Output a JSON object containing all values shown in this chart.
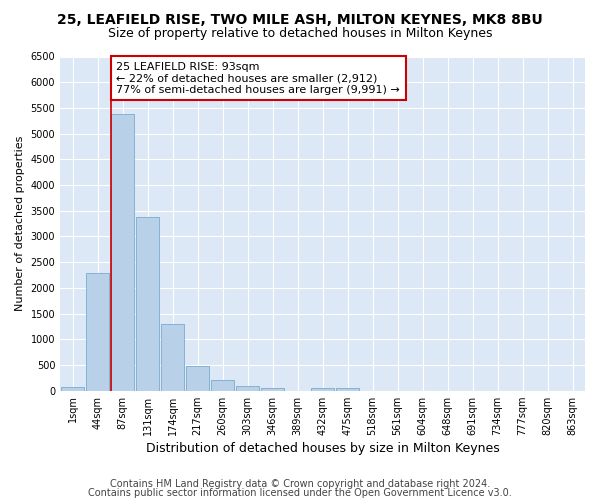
{
  "title1": "25, LEAFIELD RISE, TWO MILE ASH, MILTON KEYNES, MK8 8BU",
  "title2": "Size of property relative to detached houses in Milton Keynes",
  "xlabel": "Distribution of detached houses by size in Milton Keynes",
  "ylabel": "Number of detached properties",
  "footer1": "Contains HM Land Registry data © Crown copyright and database right 2024.",
  "footer2": "Contains public sector information licensed under the Open Government Licence v3.0.",
  "categories": [
    "1sqm",
    "44sqm",
    "87sqm",
    "131sqm",
    "174sqm",
    "217sqm",
    "260sqm",
    "303sqm",
    "346sqm",
    "389sqm",
    "432sqm",
    "475sqm",
    "518sqm",
    "561sqm",
    "604sqm",
    "648sqm",
    "691sqm",
    "734sqm",
    "777sqm",
    "820sqm",
    "863sqm"
  ],
  "values": [
    75,
    2280,
    5380,
    3380,
    1290,
    475,
    215,
    90,
    50,
    0,
    60,
    50,
    0,
    0,
    0,
    0,
    0,
    0,
    0,
    0,
    0
  ],
  "bar_color": "#b8d0e8",
  "bar_edge_color": "#7aaacf",
  "vline_color": "#cc0000",
  "vline_x_idx": 2,
  "annotation_text": "25 LEAFIELD RISE: 93sqm\n← 22% of detached houses are smaller (2,912)\n77% of semi-detached houses are larger (9,991) →",
  "annotation_box_facecolor": "#ffffff",
  "annotation_box_edgecolor": "#cc0000",
  "ylim": [
    0,
    6500
  ],
  "yticks": [
    0,
    500,
    1000,
    1500,
    2000,
    2500,
    3000,
    3500,
    4000,
    4500,
    5000,
    5500,
    6000,
    6500
  ],
  "plot_bg_color": "#dce8f5",
  "fig_bg_color": "#ffffff",
  "grid_color": "#ffffff",
  "title1_fontsize": 10,
  "title2_fontsize": 9,
  "xlabel_fontsize": 9,
  "ylabel_fontsize": 8,
  "tick_fontsize": 7,
  "footer_fontsize": 7,
  "annot_fontsize": 8
}
